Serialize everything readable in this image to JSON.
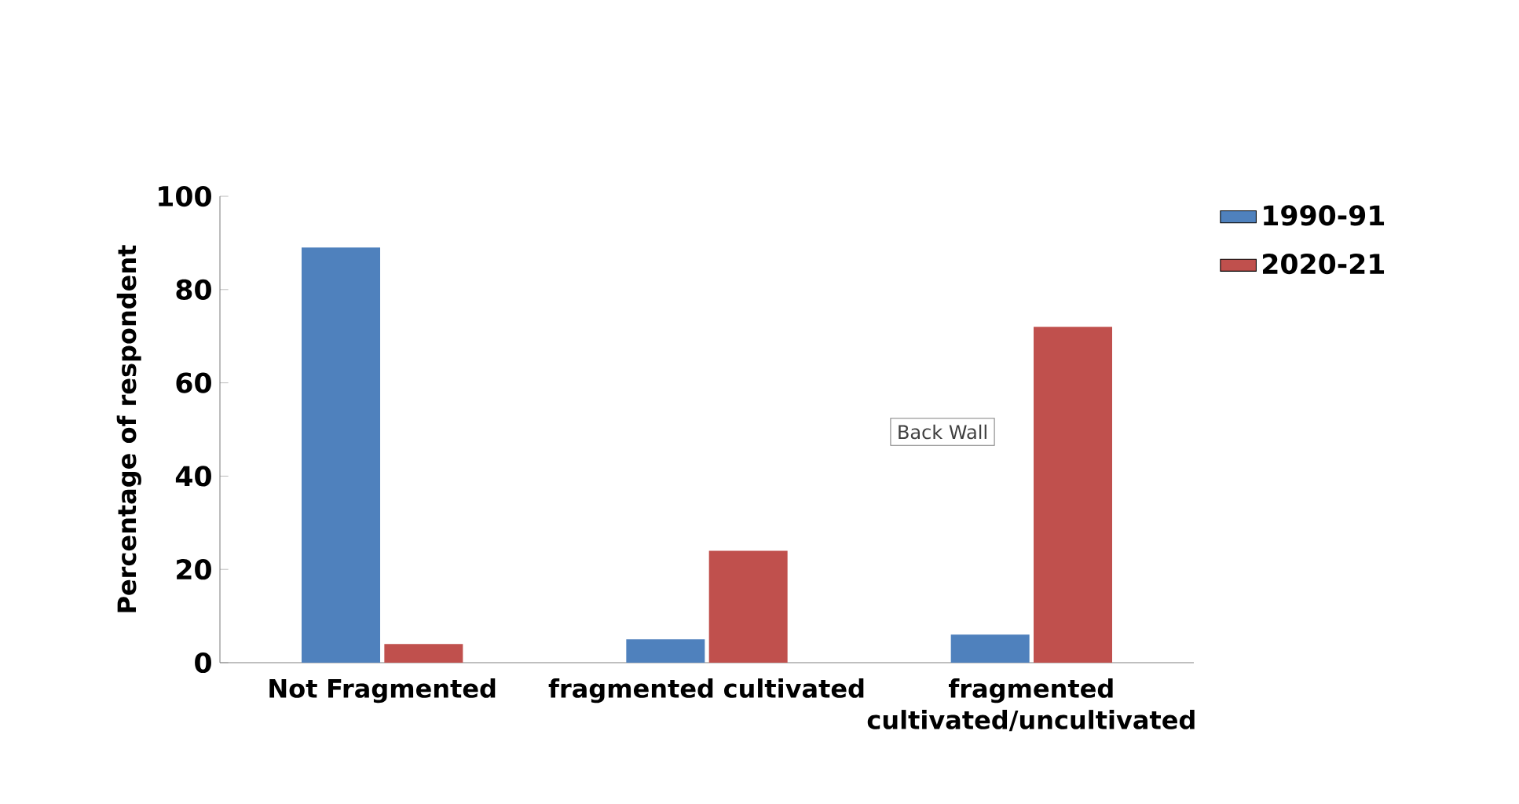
{
  "chart_data": {
    "type": "bar",
    "ylabel": "Percentage of respondent",
    "categories": [
      "Not Fragmented",
      "fragmented cultivated",
      "fragmented cultivated/uncultivated"
    ],
    "series": [
      {
        "name": "1990-91",
        "color": "#4f81bd",
        "values": [
          89,
          5,
          6
        ]
      },
      {
        "name": "2020-21",
        "color": "#c0504d",
        "values": [
          4,
          24,
          72
        ]
      }
    ],
    "ylim": [
      0,
      100
    ],
    "yticks": [
      0,
      20,
      40,
      60,
      80,
      100
    ],
    "legend": "top right",
    "grid": false,
    "annotations": [
      "Back Wall"
    ]
  }
}
